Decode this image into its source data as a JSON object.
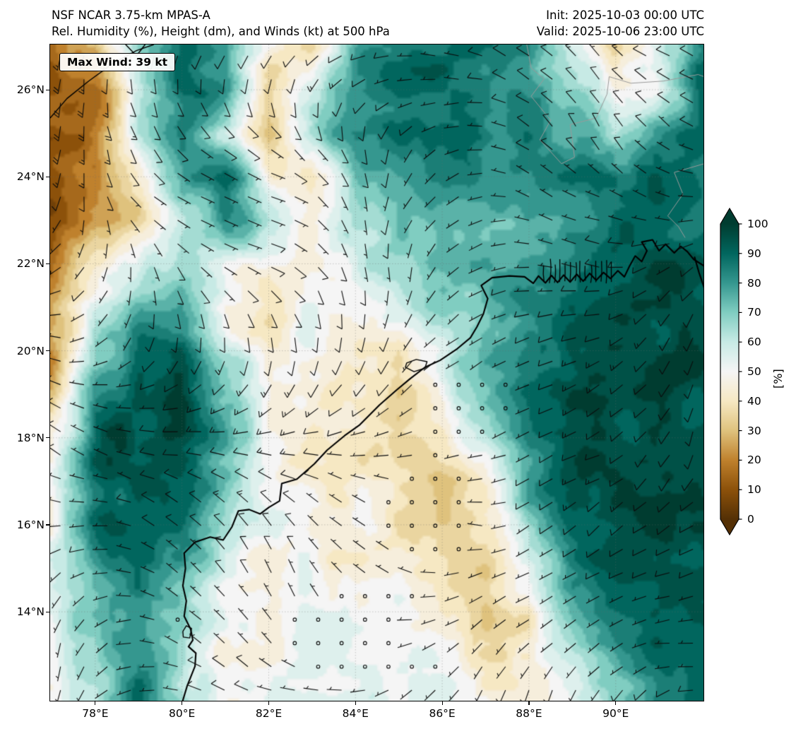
{
  "header": {
    "model": "NSF NCAR 3.75-km MPAS-A",
    "fields": "Rel. Humidity (%), Height (dm), and Winds (kt) at 500 hPa",
    "init": "Init: 2025-10-03 00:00 UTC",
    "valid": "Valid: 2025-10-06 23:00 UTC"
  },
  "map_annotations": {
    "max_wind": "Max Wind: 39 kt"
  },
  "chart_data": {
    "type": "heatmap",
    "title": "Rel. Humidity (%), Height (dm), and Winds (kt) at 500 hPa",
    "model": "NSF NCAR 3.75-km MPAS-A",
    "init_time": "2025-10-03 00:00 UTC",
    "valid_time": "2025-10-06 23:00 UTC",
    "level_hpa": 500,
    "max_wind_kt": 39,
    "lon_range": [
      76.96,
      92.04
    ],
    "lat_range": [
      11.94,
      27.04
    ],
    "xticks": [
      {
        "value": 78,
        "label": "78°E"
      },
      {
        "value": 80,
        "label": "80°E"
      },
      {
        "value": 82,
        "label": "82°E"
      },
      {
        "value": 84,
        "label": "84°E"
      },
      {
        "value": 86,
        "label": "86°E"
      },
      {
        "value": 88,
        "label": "88°E"
      },
      {
        "value": 90,
        "label": "90°E"
      }
    ],
    "yticks": [
      {
        "value": 26,
        "label": "26°N"
      },
      {
        "value": 24,
        "label": "24°N"
      },
      {
        "value": 22,
        "label": "22°N"
      },
      {
        "value": 20,
        "label": "20°N"
      },
      {
        "value": 18,
        "label": "18°N"
      },
      {
        "value": 16,
        "label": "16°N"
      },
      {
        "value": 14,
        "label": "14°N"
      }
    ],
    "gridline_step_deg": 2,
    "colorbar": {
      "label": "[%]",
      "ticks": [
        0,
        10,
        20,
        30,
        40,
        50,
        60,
        70,
        80,
        90,
        100
      ],
      "extend": "both",
      "stops": [
        {
          "v": 0,
          "color": "#543005"
        },
        {
          "v": 10,
          "color": "#8c510a"
        },
        {
          "v": 20,
          "color": "#bf812d"
        },
        {
          "v": 30,
          "color": "#dfc27d"
        },
        {
          "v": 40,
          "color": "#f6e8c3"
        },
        {
          "v": 50,
          "color": "#f5f5f5"
        },
        {
          "v": 60,
          "color": "#c7eae5"
        },
        {
          "v": 70,
          "color": "#80cdc1"
        },
        {
          "v": 80,
          "color": "#35978f"
        },
        {
          "v": 90,
          "color": "#01665e"
        },
        {
          "v": 100,
          "color": "#003c30"
        }
      ]
    },
    "rh_grid": {
      "units": "%",
      "lons": [
        77,
        78,
        79,
        80,
        81,
        82,
        83,
        84,
        85,
        86,
        87,
        88,
        89,
        90,
        91,
        92
      ],
      "lats": [
        27,
        26,
        25,
        24,
        23,
        22,
        21,
        20,
        19,
        18,
        17,
        16,
        15,
        14,
        13,
        12
      ],
      "values": [
        [
          15,
          25,
          70,
          85,
          80,
          45,
          30,
          75,
          85,
          88,
          85,
          80,
          55,
          35,
          60,
          85
        ],
        [
          8,
          15,
          55,
          88,
          85,
          35,
          55,
          80,
          88,
          90,
          85,
          80,
          70,
          45,
          50,
          90
        ],
        [
          10,
          20,
          60,
          85,
          60,
          30,
          65,
          80,
          85,
          88,
          85,
          82,
          75,
          60,
          80,
          90
        ],
        [
          8,
          15,
          45,
          80,
          90,
          50,
          35,
          70,
          80,
          85,
          80,
          78,
          85,
          88,
          90,
          85
        ],
        [
          10,
          25,
          35,
          60,
          85,
          60,
          45,
          65,
          75,
          80,
          75,
          72,
          80,
          90,
          92,
          88
        ],
        [
          15,
          40,
          55,
          70,
          55,
          45,
          50,
          55,
          70,
          75,
          72,
          75,
          85,
          92,
          95,
          90
        ],
        [
          25,
          60,
          75,
          80,
          45,
          40,
          55,
          50,
          60,
          70,
          72,
          80,
          90,
          95,
          95,
          92
        ],
        [
          20,
          70,
          85,
          90,
          60,
          45,
          50,
          45,
          40,
          55,
          75,
          85,
          92,
          95,
          95,
          95
        ],
        [
          30,
          85,
          92,
          95,
          70,
          50,
          45,
          45,
          35,
          50,
          70,
          88,
          95,
          95,
          95,
          95
        ],
        [
          45,
          90,
          95,
          95,
          80,
          55,
          45,
          40,
          30,
          40,
          60,
          85,
          95,
          98,
          95,
          95
        ],
        [
          55,
          90,
          95,
          92,
          75,
          50,
          45,
          45,
          40,
          25,
          45,
          75,
          95,
          98,
          98,
          95
        ],
        [
          50,
          85,
          92,
          90,
          65,
          50,
          48,
          45,
          42,
          28,
          40,
          70,
          92,
          97,
          97,
          95
        ],
        [
          55,
          75,
          85,
          80,
          55,
          45,
          48,
          45,
          45,
          35,
          30,
          55,
          85,
          95,
          95,
          95
        ],
        [
          60,
          70,
          80,
          70,
          50,
          48,
          50,
          48,
          50,
          45,
          30,
          45,
          75,
          90,
          92,
          92
        ],
        [
          55,
          65,
          85,
          60,
          45,
          50,
          52,
          50,
          52,
          50,
          40,
          40,
          60,
          80,
          88,
          90
        ],
        [
          50,
          60,
          90,
          65,
          48,
          52,
          55,
          52,
          55,
          55,
          45,
          45,
          55,
          70,
          85,
          88
        ]
      ]
    },
    "wind": {
      "units": "kt",
      "barb_spacing_deg": 0.54,
      "calm_threshold_kt": 2.5,
      "max_kt": 39,
      "calm_zones": [
        {
          "lon": 85.4,
          "lat": 16.5,
          "r": 3.2
        },
        {
          "lon": 83.8,
          "lat": 13.3,
          "r": 2.6
        },
        {
          "lon": 87.0,
          "lat": 18.8,
          "r": 2.0
        }
      ],
      "jet_zone": {
        "lon": 77.2,
        "lat": 25.4,
        "boost_kt": 16
      }
    },
    "geometry": {
      "coastline": [
        [
          [
            80.0,
            11.9
          ],
          [
            80.12,
            12.3
          ],
          [
            80.3,
            12.75
          ],
          [
            80.32,
            13.05
          ],
          [
            80.15,
            13.2
          ],
          [
            80.25,
            13.35
          ],
          [
            80.2,
            13.6
          ],
          [
            80.05,
            13.9
          ],
          [
            80.1,
            14.25
          ],
          [
            80.02,
            14.6
          ],
          [
            80.08,
            15.0
          ],
          [
            80.05,
            15.35
          ],
          [
            80.3,
            15.6
          ],
          [
            80.65,
            15.72
          ],
          [
            80.95,
            15.65
          ],
          [
            81.15,
            15.95
          ],
          [
            81.3,
            16.32
          ],
          [
            81.55,
            16.35
          ],
          [
            81.8,
            16.25
          ],
          [
            82.0,
            16.4
          ],
          [
            82.25,
            16.55
          ],
          [
            82.3,
            16.95
          ],
          [
            82.65,
            17.05
          ],
          [
            83.05,
            17.4
          ],
          [
            83.35,
            17.72
          ],
          [
            83.75,
            18.05
          ],
          [
            84.1,
            18.3
          ],
          [
            84.55,
            18.75
          ],
          [
            84.95,
            19.1
          ],
          [
            85.25,
            19.35
          ],
          [
            85.6,
            19.62
          ],
          [
            85.95,
            19.78
          ],
          [
            86.35,
            20.05
          ],
          [
            86.65,
            20.3
          ],
          [
            86.8,
            20.55
          ],
          [
            86.95,
            20.85
          ],
          [
            87.05,
            21.2
          ],
          [
            86.9,
            21.5
          ],
          [
            87.15,
            21.68
          ],
          [
            87.55,
            21.72
          ],
          [
            87.9,
            21.7
          ],
          [
            88.1,
            21.55
          ],
          [
            88.22,
            21.72
          ],
          [
            88.38,
            21.56
          ],
          [
            88.52,
            21.73
          ],
          [
            88.66,
            21.57
          ],
          [
            88.8,
            21.74
          ],
          [
            88.95,
            21.58
          ],
          [
            89.1,
            21.76
          ],
          [
            89.25,
            21.6
          ],
          [
            89.4,
            21.78
          ],
          [
            89.55,
            21.62
          ],
          [
            89.72,
            21.8
          ],
          [
            89.88,
            21.66
          ],
          [
            90.05,
            21.84
          ],
          [
            90.2,
            21.7
          ],
          [
            90.32,
            21.95
          ],
          [
            90.45,
            22.18
          ],
          [
            90.6,
            22.05
          ],
          [
            90.72,
            22.3
          ],
          [
            90.6,
            22.5
          ],
          [
            90.85,
            22.55
          ],
          [
            91.0,
            22.3
          ],
          [
            91.15,
            22.45
          ],
          [
            91.35,
            22.25
          ],
          [
            91.5,
            22.4
          ],
          [
            91.65,
            22.28
          ],
          [
            91.8,
            22.1
          ],
          [
            92.04,
            21.95
          ]
        ],
        [
          [
            91.82,
            22.15
          ],
          [
            91.92,
            21.8
          ],
          [
            92.04,
            21.45
          ]
        ]
      ],
      "lakes": [
        [
          [
            85.15,
            19.62
          ],
          [
            85.35,
            19.52
          ],
          [
            85.6,
            19.6
          ],
          [
            85.65,
            19.75
          ],
          [
            85.4,
            19.8
          ],
          [
            85.18,
            19.72
          ],
          [
            85.15,
            19.62
          ]
        ],
        [
          [
            80.03,
            13.42
          ],
          [
            80.18,
            13.4
          ],
          [
            80.22,
            13.62
          ],
          [
            80.1,
            13.68
          ],
          [
            80.02,
            13.55
          ],
          [
            80.03,
            13.42
          ]
        ]
      ],
      "borders": [
        [
          [
            87.95,
            27.04
          ],
          [
            88.05,
            26.5
          ],
          [
            88.35,
            26.25
          ],
          [
            88.05,
            25.85
          ],
          [
            88.5,
            25.3
          ],
          [
            88.25,
            24.85
          ],
          [
            88.75,
            24.3
          ],
          [
            89.05,
            24.45
          ],
          [
            88.95,
            25.2
          ],
          [
            89.55,
            25.35
          ],
          [
            89.8,
            25.9
          ],
          [
            89.85,
            26.3
          ],
          [
            90.35,
            26.15
          ],
          [
            91.1,
            26.2
          ],
          [
            91.9,
            26.35
          ],
          [
            92.04,
            26.3
          ]
        ],
        [
          [
            92.04,
            24.3
          ],
          [
            91.35,
            24.1
          ],
          [
            91.55,
            23.6
          ],
          [
            91.2,
            23.1
          ],
          [
            91.45,
            22.85
          ],
          [
            91.6,
            22.6
          ]
        ]
      ],
      "height_contours": [
        [
          [
            76.96,
            25.35
          ],
          [
            77.35,
            25.8
          ],
          [
            77.85,
            26.2
          ],
          [
            78.4,
            26.6
          ],
          [
            78.95,
            26.9
          ],
          [
            79.35,
            27.04
          ]
        ],
        [
          [
            78.7,
            27.04
          ],
          [
            78.95,
            26.78
          ],
          [
            79.15,
            27.04
          ]
        ]
      ],
      "delta_channels": {
        "lon_min": 88.35,
        "lon_max": 89.9,
        "lat_min": 21.55,
        "lat_max": 22.12,
        "count": 14
      }
    }
  }
}
